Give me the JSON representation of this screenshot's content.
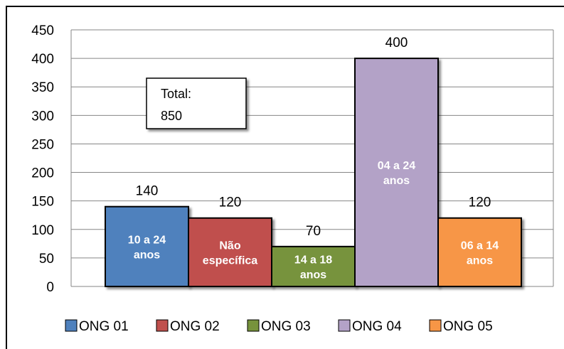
{
  "chart_data": {
    "type": "bar",
    "title": "",
    "xlabel": "",
    "ylabel": "",
    "ylim": [
      0,
      450
    ],
    "yticks": [
      0,
      50,
      100,
      150,
      200,
      250,
      300,
      350,
      400,
      450
    ],
    "grid": true,
    "legend_position": "bottom",
    "total_annotation": [
      "Total:",
      "850"
    ],
    "series": [
      {
        "name": "ONG 01",
        "value": 140,
        "inner_label": [
          "10 a 24",
          "anos"
        ],
        "color": "#4F81BD"
      },
      {
        "name": "ONG 02",
        "value": 120,
        "inner_label": [
          "Não",
          "específica"
        ],
        "color": "#C0504D"
      },
      {
        "name": "ONG 03",
        "value": 70,
        "inner_label": [
          "14 a 18",
          "anos"
        ],
        "color": "#77933C"
      },
      {
        "name": "ONG 04",
        "value": 400,
        "inner_label": [
          "04 a 24",
          "anos"
        ],
        "color": "#B3A2C7"
      },
      {
        "name": "ONG 05",
        "value": 120,
        "inner_label": [
          "06 a 14",
          "anos"
        ],
        "color": "#F79646"
      }
    ]
  }
}
